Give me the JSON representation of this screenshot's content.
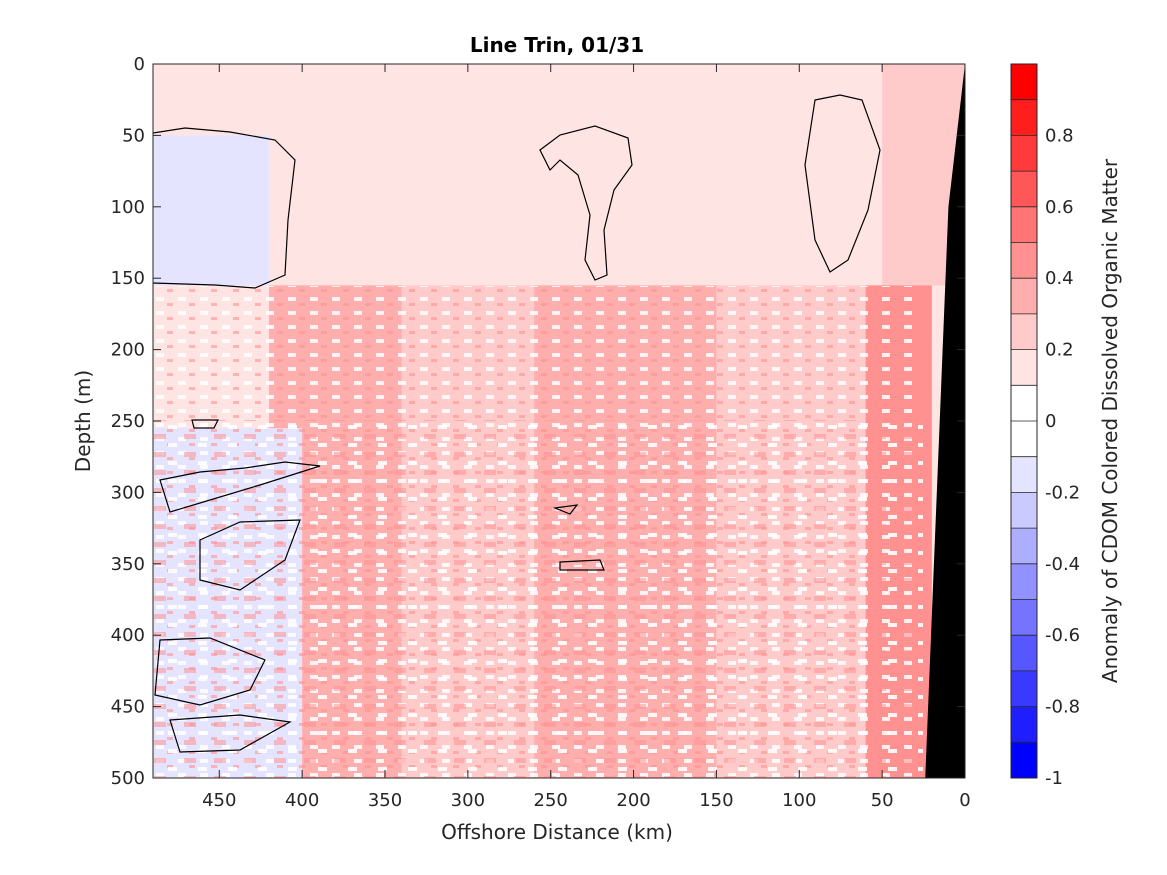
{
  "chart_data": {
    "type": "heatmap",
    "title": "Line Trin, 01/31",
    "xlabel": "Offshore Distance (km)",
    "ylabel": "Depth (m)",
    "colorbar_label": "Anomaly of CDOM Colored Dissolved Organic Matter",
    "x_reversed": true,
    "y_reversed": true,
    "xlim": [
      0,
      490
    ],
    "ylim": [
      0,
      500
    ],
    "x_ticks": [
      450,
      400,
      350,
      300,
      250,
      200,
      150,
      100,
      50,
      0
    ],
    "y_ticks": [
      0,
      50,
      100,
      150,
      200,
      250,
      300,
      350,
      400,
      450,
      500
    ],
    "colorbar_range": [
      -1,
      1
    ],
    "colorbar_ticks": [
      0.8,
      0.6,
      0.4,
      0.2,
      0,
      -0.2,
      -0.4,
      -0.6,
      -0.8,
      -1
    ],
    "colorbar_tick_labels": [
      "0.8",
      "0.6",
      "0.4",
      "0.2",
      "0",
      "-0.2",
      "-0.4",
      "-0.6",
      "-0.8",
      "-1"
    ],
    "colorbar_levels": [
      {
        "from": 0.9,
        "to": 1.0,
        "color": "#ff0000"
      },
      {
        "from": 0.8,
        "to": 0.9,
        "color": "#ff1e1e"
      },
      {
        "from": 0.7,
        "to": 0.8,
        "color": "#ff3a3a"
      },
      {
        "from": 0.6,
        "to": 0.7,
        "color": "#ff5757"
      },
      {
        "from": 0.5,
        "to": 0.6,
        "color": "#ff7474"
      },
      {
        "from": 0.4,
        "to": 0.5,
        "color": "#ff9191"
      },
      {
        "from": 0.3,
        "to": 0.4,
        "color": "#ffaeae"
      },
      {
        "from": 0.2,
        "to": 0.3,
        "color": "#ffcaca"
      },
      {
        "from": 0.1,
        "to": 0.2,
        "color": "#ffe4e4"
      },
      {
        "from": 0.0,
        "to": 0.1,
        "color": "#ffffff"
      },
      {
        "from": -0.1,
        "to": 0.0,
        "color": "#ffffff"
      },
      {
        "from": -0.2,
        "to": -0.1,
        "color": "#e4e4ff"
      },
      {
        "from": -0.3,
        "to": -0.2,
        "color": "#cacaff"
      },
      {
        "from": -0.4,
        "to": -0.3,
        "color": "#aeaeff"
      },
      {
        "from": -0.5,
        "to": -0.4,
        "color": "#9191ff"
      },
      {
        "from": -0.6,
        "to": -0.5,
        "color": "#7474ff"
      },
      {
        "from": -0.7,
        "to": -0.6,
        "color": "#5757ff"
      },
      {
        "from": -0.8,
        "to": -0.7,
        "color": "#3a3aff"
      },
      {
        "from": -0.9,
        "to": -0.8,
        "color": "#1e1eff"
      },
      {
        "from": -1.0,
        "to": -0.9,
        "color": "#0000ff"
      }
    ],
    "regions": [
      {
        "x_from": 490,
        "x_to": 420,
        "depth_from": 0,
        "depth_to": 45,
        "value": 0.15
      },
      {
        "x_from": 420,
        "x_to": 360,
        "depth_from": 0,
        "depth_to": 45,
        "value": 0.15
      },
      {
        "x_from": 380,
        "x_to": 320,
        "depth_from": 0,
        "depth_to": 155,
        "value": 0.15
      },
      {
        "x_from": 330,
        "x_to": 250,
        "depth_from": 0,
        "depth_to": 155,
        "value": 0.15
      },
      {
        "x_from": 250,
        "x_to": 140,
        "depth_from": 0,
        "depth_to": 155,
        "value": 0.15
      },
      {
        "x_from": 140,
        "x_to": 50,
        "depth_from": 0,
        "depth_to": 155,
        "value": 0.15
      },
      {
        "x_from": 50,
        "x_to": 0,
        "depth_from": 0,
        "depth_to": 155,
        "value": 0.25
      },
      {
        "x_from": 490,
        "x_to": 420,
        "depth_from": 50,
        "depth_to": 155,
        "value": -0.15
      },
      {
        "x_from": 340,
        "x_to": 260,
        "depth_from": 155,
        "depth_to": 500,
        "value": 0.25
      },
      {
        "x_from": 420,
        "x_to": 340,
        "depth_from": 155,
        "depth_to": 500,
        "value": 0.3
      },
      {
        "x_from": 260,
        "x_to": 150,
        "depth_from": 155,
        "depth_to": 500,
        "value": 0.3
      },
      {
        "x_from": 150,
        "x_to": 60,
        "depth_from": 155,
        "depth_to": 500,
        "value": 0.25
      },
      {
        "x_from": 60,
        "x_to": 20,
        "depth_from": 155,
        "depth_to": 500,
        "value": 0.45
      },
      {
        "x_from": 490,
        "x_to": 400,
        "depth_from": 255,
        "depth_to": 500,
        "value": -0.2
      }
    ],
    "land_mask": {
      "color": "#000000",
      "boundary_x_at_depth": [
        [
          0,
          0
        ],
        [
          10,
          100
        ],
        [
          24,
          500
        ]
      ]
    }
  }
}
